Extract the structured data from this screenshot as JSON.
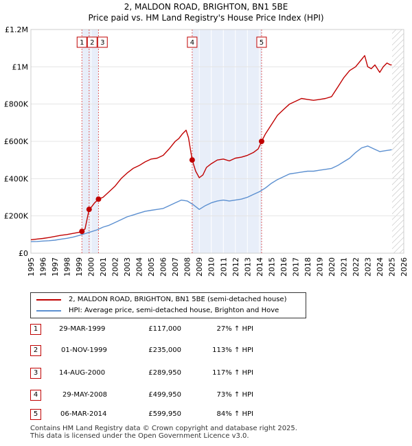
{
  "header": {
    "title_line1": "2, MALDON ROAD, BRIGHTON, BN1 5BE",
    "title_line2": "Price paid vs. HM Land Registry's House Price Index (HPI)"
  },
  "chart_data": {
    "type": "line",
    "title": "2, MALDON ROAD, BRIGHTON, BN1 5BE — Price paid vs. HM Land Registry's House Price Index (HPI)",
    "xlabel": "",
    "ylabel": "",
    "xlim": [
      1995,
      2026
    ],
    "ylim": [
      0,
      1200000
    ],
    "x_ticks": [
      1995,
      1996,
      1997,
      1998,
      1999,
      2000,
      2001,
      2002,
      2003,
      2004,
      2005,
      2006,
      2007,
      2008,
      2009,
      2010,
      2011,
      2012,
      2013,
      2014,
      2015,
      2016,
      2017,
      2018,
      2019,
      2020,
      2021,
      2022,
      2023,
      2024,
      2025,
      2026
    ],
    "y_ticks": [
      {
        "value": 0,
        "label": "£0"
      },
      {
        "value": 200000,
        "label": "£200K"
      },
      {
        "value": 400000,
        "label": "£400K"
      },
      {
        "value": 600000,
        "label": "£600K"
      },
      {
        "value": 800000,
        "label": "£800K"
      },
      {
        "value": 1000000,
        "label": "£1M"
      },
      {
        "value": 1200000,
        "label": "£1.2M"
      }
    ],
    "grid": true,
    "colors": {
      "property": "#c00000",
      "hpi": "#5b8fd0",
      "shade": "#e8eef9",
      "hatch": "#b0b0b0",
      "marker_line": "#e06060"
    },
    "shaded_ranges": [
      [
        1999.24,
        2000.62
      ],
      [
        2008.41,
        2014.18
      ]
    ],
    "future_from": 2025.0,
    "series": [
      {
        "name": "2, MALDON ROAD, BRIGHTON, BN1 5BE (semi-detached house)",
        "color": "#c00000",
        "x": [
          1995.0,
          1995.5,
          1996.0,
          1996.5,
          1997.0,
          1997.5,
          1998.0,
          1998.5,
          1999.0,
          1999.24,
          1999.5,
          1999.84,
          2000.0,
          2000.3,
          2000.62,
          2001.0,
          2001.5,
          2002.0,
          2002.5,
          2003.0,
          2003.5,
          2004.0,
          2004.5,
          2005.0,
          2005.5,
          2006.0,
          2006.5,
          2007.0,
          2007.3,
          2007.6,
          2007.9,
          2008.1,
          2008.41,
          2008.7,
          2009.0,
          2009.3,
          2009.6,
          2010.0,
          2010.5,
          2011.0,
          2011.5,
          2012.0,
          2012.5,
          2013.0,
          2013.5,
          2013.9,
          2014.18,
          2014.5,
          2015.0,
          2015.5,
          2016.0,
          2016.5,
          2017.0,
          2017.5,
          2018.0,
          2018.5,
          2019.0,
          2019.5,
          2020.0,
          2020.5,
          2021.0,
          2021.5,
          2022.0,
          2022.5,
          2022.75,
          2023.0,
          2023.3,
          2023.6,
          2024.0,
          2024.3,
          2024.6,
          2024.9,
          2025.0
        ],
        "values": [
          72000,
          76000,
          79000,
          84000,
          90000,
          96000,
          100000,
          106000,
          112000,
          117000,
          130000,
          235000,
          245000,
          270000,
          289950,
          300000,
          330000,
          360000,
          400000,
          430000,
          455000,
          470000,
          490000,
          505000,
          510000,
          525000,
          560000,
          600000,
          615000,
          640000,
          660000,
          620000,
          499950,
          440000,
          405000,
          420000,
          460000,
          480000,
          500000,
          505000,
          495000,
          510000,
          515000,
          525000,
          540000,
          560000,
          599950,
          640000,
          690000,
          740000,
          770000,
          800000,
          815000,
          830000,
          825000,
          820000,
          825000,
          830000,
          840000,
          890000,
          940000,
          980000,
          1000000,
          1040000,
          1060000,
          1000000,
          990000,
          1010000,
          970000,
          1000000,
          1020000,
          1010000,
          1010000
        ]
      },
      {
        "name": "HPI: Average price, semi-detached house, Brighton and Hove",
        "color": "#5b8fd0",
        "x": [
          1995.0,
          1995.5,
          1996.0,
          1996.5,
          1997.0,
          1997.5,
          1998.0,
          1998.5,
          1999.0,
          1999.5,
          2000.0,
          2000.5,
          2001.0,
          2001.5,
          2002.0,
          2002.5,
          2003.0,
          2003.5,
          2004.0,
          2004.5,
          2005.0,
          2005.5,
          2006.0,
          2006.5,
          2007.0,
          2007.5,
          2008.0,
          2008.5,
          2009.0,
          2009.5,
          2010.0,
          2010.5,
          2011.0,
          2011.5,
          2012.0,
          2012.5,
          2013.0,
          2013.5,
          2014.0,
          2014.5,
          2015.0,
          2015.5,
          2016.0,
          2016.5,
          2017.0,
          2017.5,
          2018.0,
          2018.5,
          2019.0,
          2019.5,
          2020.0,
          2020.5,
          2021.0,
          2021.5,
          2022.0,
          2022.5,
          2023.0,
          2023.5,
          2024.0,
          2024.5,
          2025.0
        ],
        "values": [
          62000,
          63000,
          65000,
          67000,
          70000,
          75000,
          80000,
          86000,
          95000,
          105000,
          115000,
          125000,
          140000,
          150000,
          165000,
          180000,
          195000,
          205000,
          215000,
          225000,
          230000,
          235000,
          240000,
          255000,
          270000,
          285000,
          280000,
          260000,
          235000,
          255000,
          270000,
          280000,
          285000,
          280000,
          285000,
          290000,
          300000,
          315000,
          330000,
          350000,
          375000,
          395000,
          410000,
          425000,
          430000,
          435000,
          440000,
          440000,
          445000,
          450000,
          455000,
          470000,
          490000,
          510000,
          540000,
          565000,
          575000,
          560000,
          545000,
          550000,
          555000
        ]
      }
    ],
    "transactions": [
      {
        "label": "1",
        "x": 1999.24,
        "value": 117000
      },
      {
        "label": "2",
        "x": 1999.84,
        "value": 235000
      },
      {
        "label": "3",
        "x": 2000.62,
        "value": 289950
      },
      {
        "label": "4",
        "x": 2008.41,
        "value": 499950
      },
      {
        "label": "5",
        "x": 2014.18,
        "value": 599950
      }
    ]
  },
  "legend": {
    "items": [
      {
        "label": "2, MALDON ROAD, BRIGHTON, BN1 5BE (semi-detached house)",
        "color": "#c00000"
      },
      {
        "label": "HPI: Average price, semi-detached house, Brighton and Hove",
        "color": "#5b8fd0"
      }
    ]
  },
  "transactions_table": [
    {
      "num": "1",
      "date": "29-MAR-1999",
      "price": "£117,000",
      "hpi": "27% ↑ HPI"
    },
    {
      "num": "2",
      "date": "01-NOV-1999",
      "price": "£235,000",
      "hpi": "113% ↑ HPI"
    },
    {
      "num": "3",
      "date": "14-AUG-2000",
      "price": "£289,950",
      "hpi": "117% ↑ HPI"
    },
    {
      "num": "4",
      "date": "29-MAY-2008",
      "price": "£499,950",
      "hpi": "73% ↑ HPI"
    },
    {
      "num": "5",
      "date": "06-MAR-2014",
      "price": "£599,950",
      "hpi": "84% ↑ HPI"
    }
  ],
  "footer": {
    "line1": "Contains HM Land Registry data © Crown copyright and database right 2025.",
    "line2": "This data is licensed under the Open Government Licence v3.0."
  }
}
